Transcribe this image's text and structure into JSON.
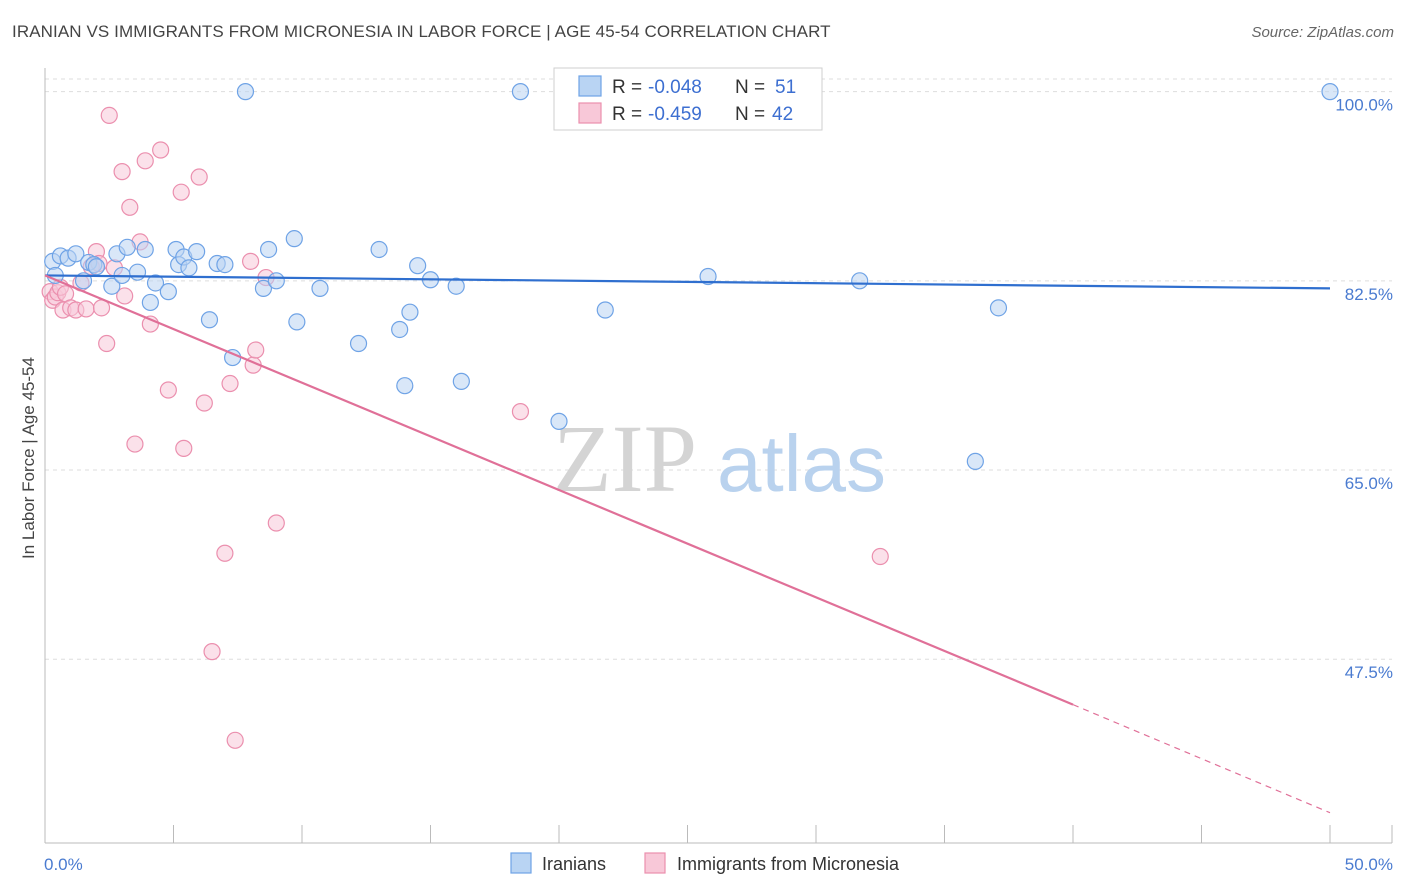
{
  "header": {
    "title": "IRANIAN VS IMMIGRANTS FROM MICRONESIA IN LABOR FORCE | AGE 45-54 CORRELATION CHART",
    "source": "Source: ZipAtlas.com"
  },
  "legend_box": {
    "row1": {
      "r_label": "R =",
      "r_value": "-0.048",
      "n_label": "N =",
      "n_value": "51"
    },
    "row2": {
      "r_label": "R =",
      "r_value": "-0.459",
      "n_label": "N =",
      "n_value": "42"
    }
  },
  "bottom_legend": {
    "series1": "Iranians",
    "series2": "Immigrants from Micronesia"
  },
  "watermark": {
    "zip": "ZIP",
    "atlas": "atlas"
  },
  "chart_data": {
    "type": "scatter",
    "ylabel": "In Labor Force | Age 45-54",
    "xlabel": "",
    "xlim": [
      0,
      50
    ],
    "ylim": [
      30.5,
      102
    ],
    "x_tick_labels": [
      "0.0%",
      "50.0%"
    ],
    "y_ticks": [
      47.5,
      65.0,
      82.5,
      100.0
    ],
    "y_tick_labels": [
      "47.5%",
      "65.0%",
      "82.5%",
      "100.0%"
    ],
    "grid": true,
    "colors": {
      "iranians": "#6fa3e6",
      "iranians_fill": "#b9d4f3",
      "iranians_line": "#2f6fcf",
      "micronesia": "#eb8fae",
      "micronesia_fill": "#f8c8d8",
      "micronesia_line": "#e07098"
    },
    "series": [
      {
        "name": "Iranians",
        "r": -0.048,
        "n": 51,
        "trend": {
          "x0": 0,
          "y0": 83.0,
          "x1": 50,
          "y1": 81.8
        },
        "points": [
          [
            0.3,
            84.3
          ],
          [
            0.4,
            83.0
          ],
          [
            0.6,
            84.8
          ],
          [
            0.9,
            84.6
          ],
          [
            1.2,
            85.0
          ],
          [
            1.5,
            82.5
          ],
          [
            1.7,
            84.2
          ],
          [
            1.9,
            84.0
          ],
          [
            2.0,
            83.8
          ],
          [
            2.6,
            82.0
          ],
          [
            2.8,
            85.0
          ],
          [
            3.0,
            83.0
          ],
          [
            3.2,
            85.6
          ],
          [
            3.6,
            83.3
          ],
          [
            3.9,
            85.4
          ],
          [
            4.1,
            80.5
          ],
          [
            4.3,
            82.3
          ],
          [
            4.8,
            81.5
          ],
          [
            5.1,
            85.4
          ],
          [
            5.2,
            84.0
          ],
          [
            5.4,
            84.7
          ],
          [
            5.6,
            83.7
          ],
          [
            5.9,
            85.2
          ],
          [
            6.4,
            78.9
          ],
          [
            6.7,
            84.1
          ],
          [
            7.0,
            84.0
          ],
          [
            7.3,
            75.4
          ],
          [
            7.8,
            100.0
          ],
          [
            8.5,
            81.8
          ],
          [
            8.7,
            85.4
          ],
          [
            9.0,
            82.5
          ],
          [
            9.7,
            86.4
          ],
          [
            9.8,
            78.7
          ],
          [
            10.7,
            81.8
          ],
          [
            12.2,
            76.7
          ],
          [
            13.0,
            85.4
          ],
          [
            13.8,
            78.0
          ],
          [
            14.0,
            72.8
          ],
          [
            14.2,
            79.6
          ],
          [
            14.5,
            83.9
          ],
          [
            15.0,
            82.6
          ],
          [
            16.0,
            82.0
          ],
          [
            16.2,
            73.2
          ],
          [
            18.5,
            100.0
          ],
          [
            20.0,
            69.5
          ],
          [
            21.8,
            79.8
          ],
          [
            25.8,
            82.9
          ],
          [
            31.7,
            82.5
          ],
          [
            36.2,
            65.8
          ],
          [
            37.1,
            80.0
          ],
          [
            50.0,
            100.0
          ]
        ]
      },
      {
        "name": "Immigrants from Micronesia",
        "r": -0.459,
        "n": 42,
        "trend": {
          "x0": 0,
          "y0": 83.0,
          "x1": 40.0,
          "y1": 43.3,
          "dash_x0": 40.0,
          "dash_y0": 43.3,
          "dash_x1": 50.0,
          "dash_y1": 33.3
        },
        "points": [
          [
            0.2,
            81.5
          ],
          [
            0.3,
            80.7
          ],
          [
            0.4,
            81.0
          ],
          [
            0.5,
            81.4
          ],
          [
            0.6,
            81.9
          ],
          [
            0.7,
            79.8
          ],
          [
            0.8,
            81.3
          ],
          [
            1.0,
            80.0
          ],
          [
            1.2,
            79.8
          ],
          [
            1.4,
            82.3
          ],
          [
            1.6,
            79.9
          ],
          [
            1.8,
            83.8
          ],
          [
            2.0,
            85.2
          ],
          [
            2.1,
            84.1
          ],
          [
            2.2,
            80.0
          ],
          [
            2.4,
            76.7
          ],
          [
            2.5,
            97.8
          ],
          [
            2.7,
            83.7
          ],
          [
            3.0,
            92.6
          ],
          [
            3.1,
            81.1
          ],
          [
            3.3,
            89.3
          ],
          [
            3.5,
            67.4
          ],
          [
            3.7,
            86.1
          ],
          [
            3.9,
            93.6
          ],
          [
            4.1,
            78.5
          ],
          [
            4.5,
            94.6
          ],
          [
            4.8,
            72.4
          ],
          [
            5.3,
            90.7
          ],
          [
            5.4,
            67.0
          ],
          [
            6.0,
            92.1
          ],
          [
            6.2,
            71.2
          ],
          [
            6.5,
            48.2
          ],
          [
            7.0,
            57.3
          ],
          [
            7.2,
            73.0
          ],
          [
            7.4,
            40.0
          ],
          [
            8.0,
            84.3
          ],
          [
            8.1,
            74.7
          ],
          [
            8.2,
            76.1
          ],
          [
            8.6,
            82.8
          ],
          [
            9.0,
            60.1
          ],
          [
            18.5,
            70.4
          ],
          [
            32.5,
            57.0
          ]
        ]
      }
    ]
  }
}
